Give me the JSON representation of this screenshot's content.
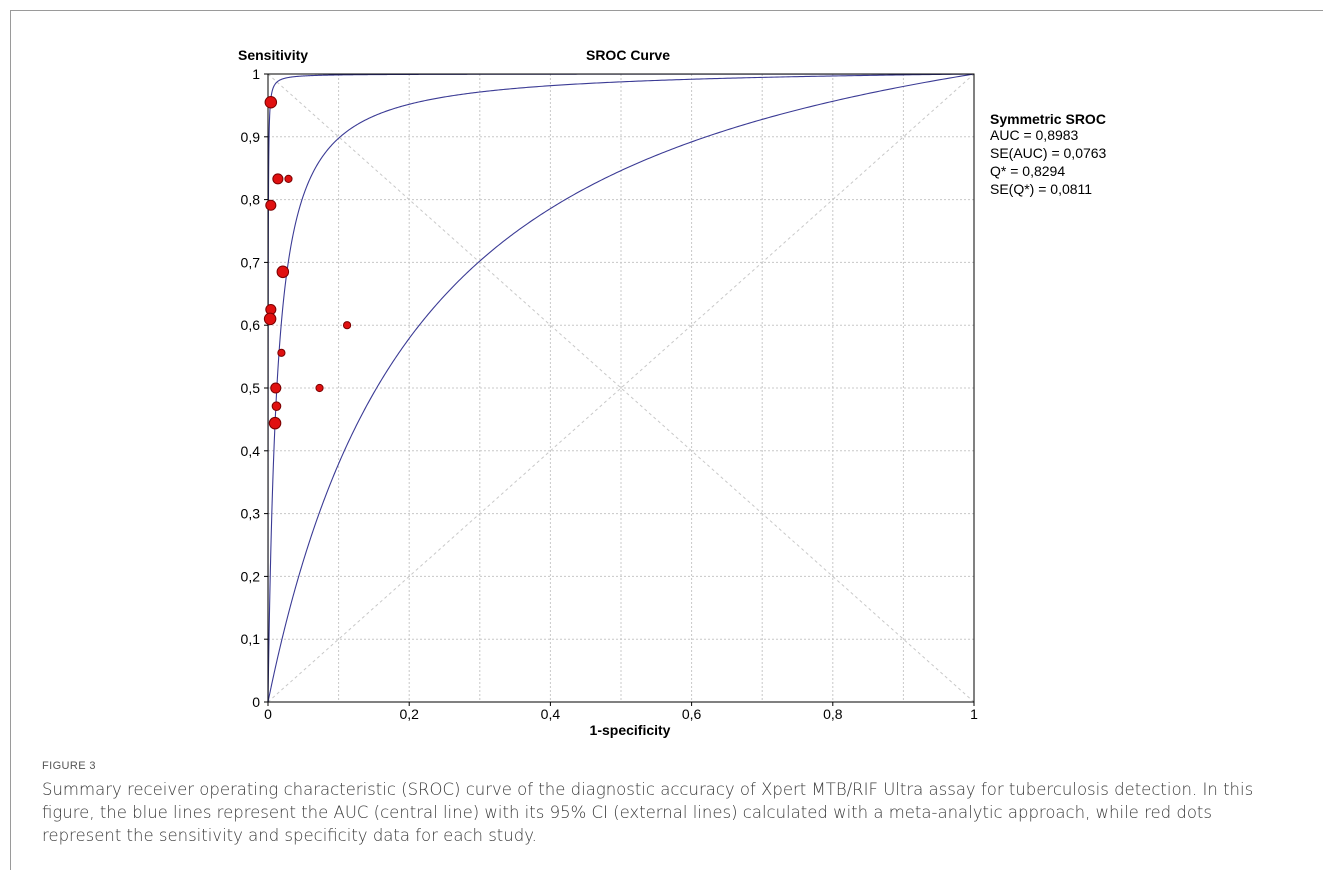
{
  "figure": {
    "label": "FIGURE 3",
    "caption": "Summary receiver operating characteristic (SROC) curve of the diagnostic accuracy of Xpert MTB/RIF Ultra assay for tuberculosis detection. In this figure, the blue lines represent the AUC (central line) with its 95% CI (external lines) calculated with a meta-analytic approach, while red dots represent the sensitivity and specificity data for each study."
  },
  "chart_data": {
    "type": "scatter",
    "title": "SROC Curve",
    "xlabel": "1-specificity",
    "ylabel": "Sensitivity",
    "xlim": [
      0,
      1
    ],
    "ylim": [
      0,
      1
    ],
    "x_ticks": [
      "0",
      "0,2",
      "0,4",
      "0,6",
      "0,8",
      "1"
    ],
    "y_ticks": [
      "0",
      "0,1",
      "0,2",
      "0,3",
      "0,4",
      "0,5",
      "0,6",
      "0,7",
      "0,8",
      "0,9",
      "1"
    ],
    "grid": true,
    "colors": {
      "curve": "#3b3b95",
      "point": "#e01010",
      "point_edge": "#7a0000",
      "grid": "#c8c8c8"
    },
    "points": [
      {
        "x": 0.004,
        "y": 0.955,
        "size": 8
      },
      {
        "x": 0.014,
        "y": 0.833,
        "size": 7
      },
      {
        "x": 0.029,
        "y": 0.833,
        "size": 5
      },
      {
        "x": 0.004,
        "y": 0.791,
        "size": 7
      },
      {
        "x": 0.021,
        "y": 0.685,
        "size": 8
      },
      {
        "x": 0.004,
        "y": 0.625,
        "size": 7
      },
      {
        "x": 0.003,
        "y": 0.61,
        "size": 8
      },
      {
        "x": 0.112,
        "y": 0.6,
        "size": 5
      },
      {
        "x": 0.019,
        "y": 0.556,
        "size": 5
      },
      {
        "x": 0.011,
        "y": 0.5,
        "size": 7
      },
      {
        "x": 0.073,
        "y": 0.5,
        "size": 5
      },
      {
        "x": 0.012,
        "y": 0.471,
        "size": 6
      },
      {
        "x": 0.01,
        "y": 0.444,
        "size": 8
      }
    ],
    "sroc_curves": [
      {
        "role": "central",
        "dor": 79.0
      },
      {
        "role": "upper_ci",
        "dor": 6000
      },
      {
        "role": "lower_ci",
        "dor": 5.5
      }
    ],
    "reference_lines": [
      "diagonal",
      "anti-diagonal"
    ],
    "stats": {
      "title": "Symmetric SROC",
      "lines": [
        "AUC = 0,8983",
        "SE(AUC) = 0,0763",
        "Q* = 0,8294",
        "SE(Q*) = 0,0811"
      ]
    }
  }
}
